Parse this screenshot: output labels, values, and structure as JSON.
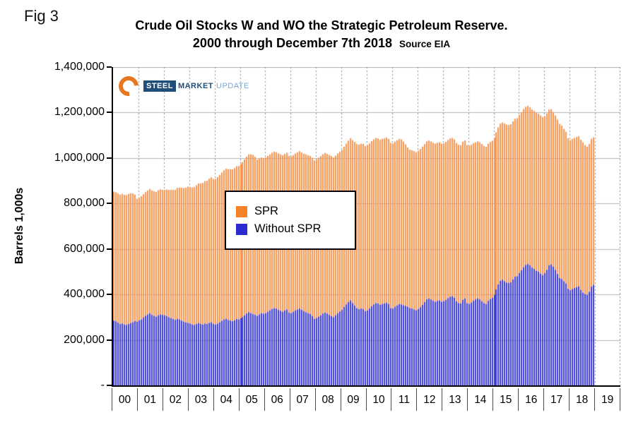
{
  "fig_label": "Fig 3",
  "logo": {
    "steel": "STEEL",
    "market": "MARKET",
    "update": "UPDATE"
  },
  "chart_data": {
    "type": "area",
    "stacked": true,
    "title": "Crude Oil Stocks W and WO the Strategic Petroleum Reserve.",
    "subtitle": "2000 through December 7th 2018",
    "source": "Source EIA",
    "ylabel": "Barrels 1,000s",
    "ylim": [
      0,
      1400000
    ],
    "ytick_step": 200000,
    "ytick_labels": [
      "-",
      "200,000",
      "400,000",
      "600,000",
      "800,000",
      "1,000,000",
      "1,200,000",
      "1,400,000"
    ],
    "x_tick_labels": [
      "00",
      "01",
      "02",
      "03",
      "04",
      "05",
      "06",
      "07",
      "08",
      "09",
      "10",
      "11",
      "12",
      "13",
      "14",
      "15",
      "16",
      "17",
      "18",
      "19"
    ],
    "x_note": "monthly samples, Jan 2000 through Dec 2018; last x slot (19) has no data",
    "grid": {
      "horizontal": true,
      "vertical": "dotted-per-year"
    },
    "legend_position": "center",
    "legend": [
      {
        "label": "SPR",
        "color": "#F5812B"
      },
      {
        "label": "Without SPR",
        "color": "#2B2BD0"
      }
    ],
    "series": [
      {
        "name": "Without SPR",
        "color": "#3A3AD9",
        "values": [
          285000,
          282000,
          276000,
          270000,
          272000,
          268000,
          266000,
          270000,
          274000,
          278000,
          283000,
          280000,
          286000,
          290000,
          298000,
          306000,
          312000,
          318000,
          310000,
          306000,
          302000,
          308000,
          312000,
          310000,
          308000,
          305000,
          300000,
          296000,
          292000,
          288000,
          292000,
          290000,
          285000,
          280000,
          277000,
          275000,
          272000,
          268000,
          266000,
          270000,
          274000,
          270000,
          268000,
          272000,
          270000,
          275000,
          278000,
          270000,
          268000,
          272000,
          278000,
          284000,
          290000,
          293000,
          288000,
          285000,
          282000,
          286000,
          292000,
          290000,
          295000,
          300000,
          308000,
          316000,
          322000,
          318000,
          314000,
          310000,
          306000,
          312000,
          318000,
          315000,
          318000,
          324000,
          330000,
          336000,
          340000,
          338000,
          332000,
          328000,
          324000,
          330000,
          334000,
          320000,
          318000,
          324000,
          330000,
          334000,
          338000,
          332000,
          326000,
          322000,
          318000,
          314000,
          305000,
          292000,
          296000,
          302000,
          308000,
          316000,
          320000,
          316000,
          310000,
          305000,
          300000,
          308000,
          318000,
          325000,
          332000,
          345000,
          356000,
          366000,
          374000,
          362000,
          352000,
          340000,
          335000,
          338000,
          336000,
          326000,
          330000,
          338000,
          348000,
          356000,
          362000,
          360000,
          354000,
          358000,
          360000,
          364000,
          358000,
          340000,
          338000,
          346000,
          352000,
          358000,
          356000,
          352000,
          350000,
          346000,
          340000,
          338000,
          334000,
          330000,
          336000,
          344000,
          354000,
          366000,
          378000,
          382000,
          378000,
          372000,
          368000,
          372000,
          374000,
          368000,
          370000,
          376000,
          384000,
          390000,
          392000,
          386000,
          370000,
          362000,
          360000,
          376000,
          382000,
          362000,
          358000,
          364000,
          372000,
          378000,
          382000,
          378000,
          370000,
          362000,
          358000,
          372000,
          380000,
          385000,
          398000,
          422000,
          444000,
          460000,
          465000,
          458000,
          452000,
          450000,
          454000,
          466000,
          478000,
          480000,
          494000,
          506000,
          520000,
          530000,
          534000,
          528000,
          518000,
          512000,
          504000,
          500000,
          492000,
          485000,
          494000,
          508000,
          528000,
          532000,
          522000,
          508000,
          490000,
          472000,
          468000,
          458000,
          448000,
          425000,
          418000,
          424000,
          428000,
          432000,
          436000,
          420000,
          408000,
          402000,
          398000,
          412000,
          434000,
          442000
        ]
      },
      {
        "name": "SPR",
        "color": "#F79450",
        "values": [
          567000,
          567000,
          568000,
          569000,
          570000,
          570000,
          571000,
          572000,
          571000,
          566000,
          556000,
          541000,
          541000,
          542000,
          543000,
          544000,
          545000,
          546000,
          547000,
          548000,
          549000,
          550000,
          550000,
          550000,
          552000,
          556000,
          560000,
          564000,
          568000,
          572000,
          576000,
          580000,
          584000,
          588000,
          592000,
          599000,
          600000,
          602000,
          606000,
          610000,
          614000,
          618000,
          622000,
          626000,
          630000,
          634000,
          637000,
          638000,
          640000,
          644000,
          648000,
          652000,
          656000,
          660000,
          663000,
          666000,
          668000,
          670000,
          672000,
          675000,
          678000,
          682000,
          686000,
          690000,
          694000,
          698000,
          700000,
          695000,
          687000,
          685000,
          684000,
          684000,
          684000,
          685000,
          686000,
          687000,
          688000,
          688000,
          688000,
          688000,
          688000,
          688000,
          689000,
          689000,
          689000,
          689000,
          690000,
          691000,
          692000,
          692000,
          693000,
          694000,
          694000,
          695000,
          696000,
          697000,
          698000,
          699000,
          700000,
          701000,
          702000,
          702000,
          703000,
          704000,
          702000,
          702000,
          702000,
          702000,
          703000,
          705000,
          707000,
          710000,
          713000,
          716000,
          719000,
          722000,
          724000,
          725000,
          726000,
          726000,
          726000,
          726000,
          726000,
          726000,
          726000,
          726000,
          726000,
          726000,
          726000,
          726000,
          726000,
          726000,
          726000,
          726000,
          726000,
          726000,
          726000,
          721000,
          710000,
          700000,
          696000,
          696000,
          696000,
          696000,
          696000,
          696000,
          696000,
          695000,
          695000,
          695000,
          695000,
          695000,
          695000,
          695000,
          695000,
          695000,
          695000,
          695000,
          695000,
          696000,
          696000,
          696000,
          696000,
          696000,
          696000,
          696000,
          695000,
          695000,
          695000,
          694000,
          693000,
          691000,
          691000,
          691000,
          691000,
          691000,
          691000,
          691000,
          691000,
          691000,
          691000,
          691000,
          691000,
          691000,
          691000,
          694000,
          695000,
          695000,
          695000,
          695000,
          695000,
          695000,
          695000,
          695000,
          695000,
          695000,
          695000,
          695000,
          695000,
          695000,
          695000,
          695000,
          695000,
          695000,
          691000,
          688000,
          685000,
          682000,
          680000,
          679000,
          679000,
          678000,
          674000,
          670000,
          667000,
          662000,
          660000,
          660000,
          660000,
          660000,
          660000,
          660000,
          660000,
          655000,
          652000,
          650000,
          650000,
          649000
        ]
      }
    ]
  }
}
